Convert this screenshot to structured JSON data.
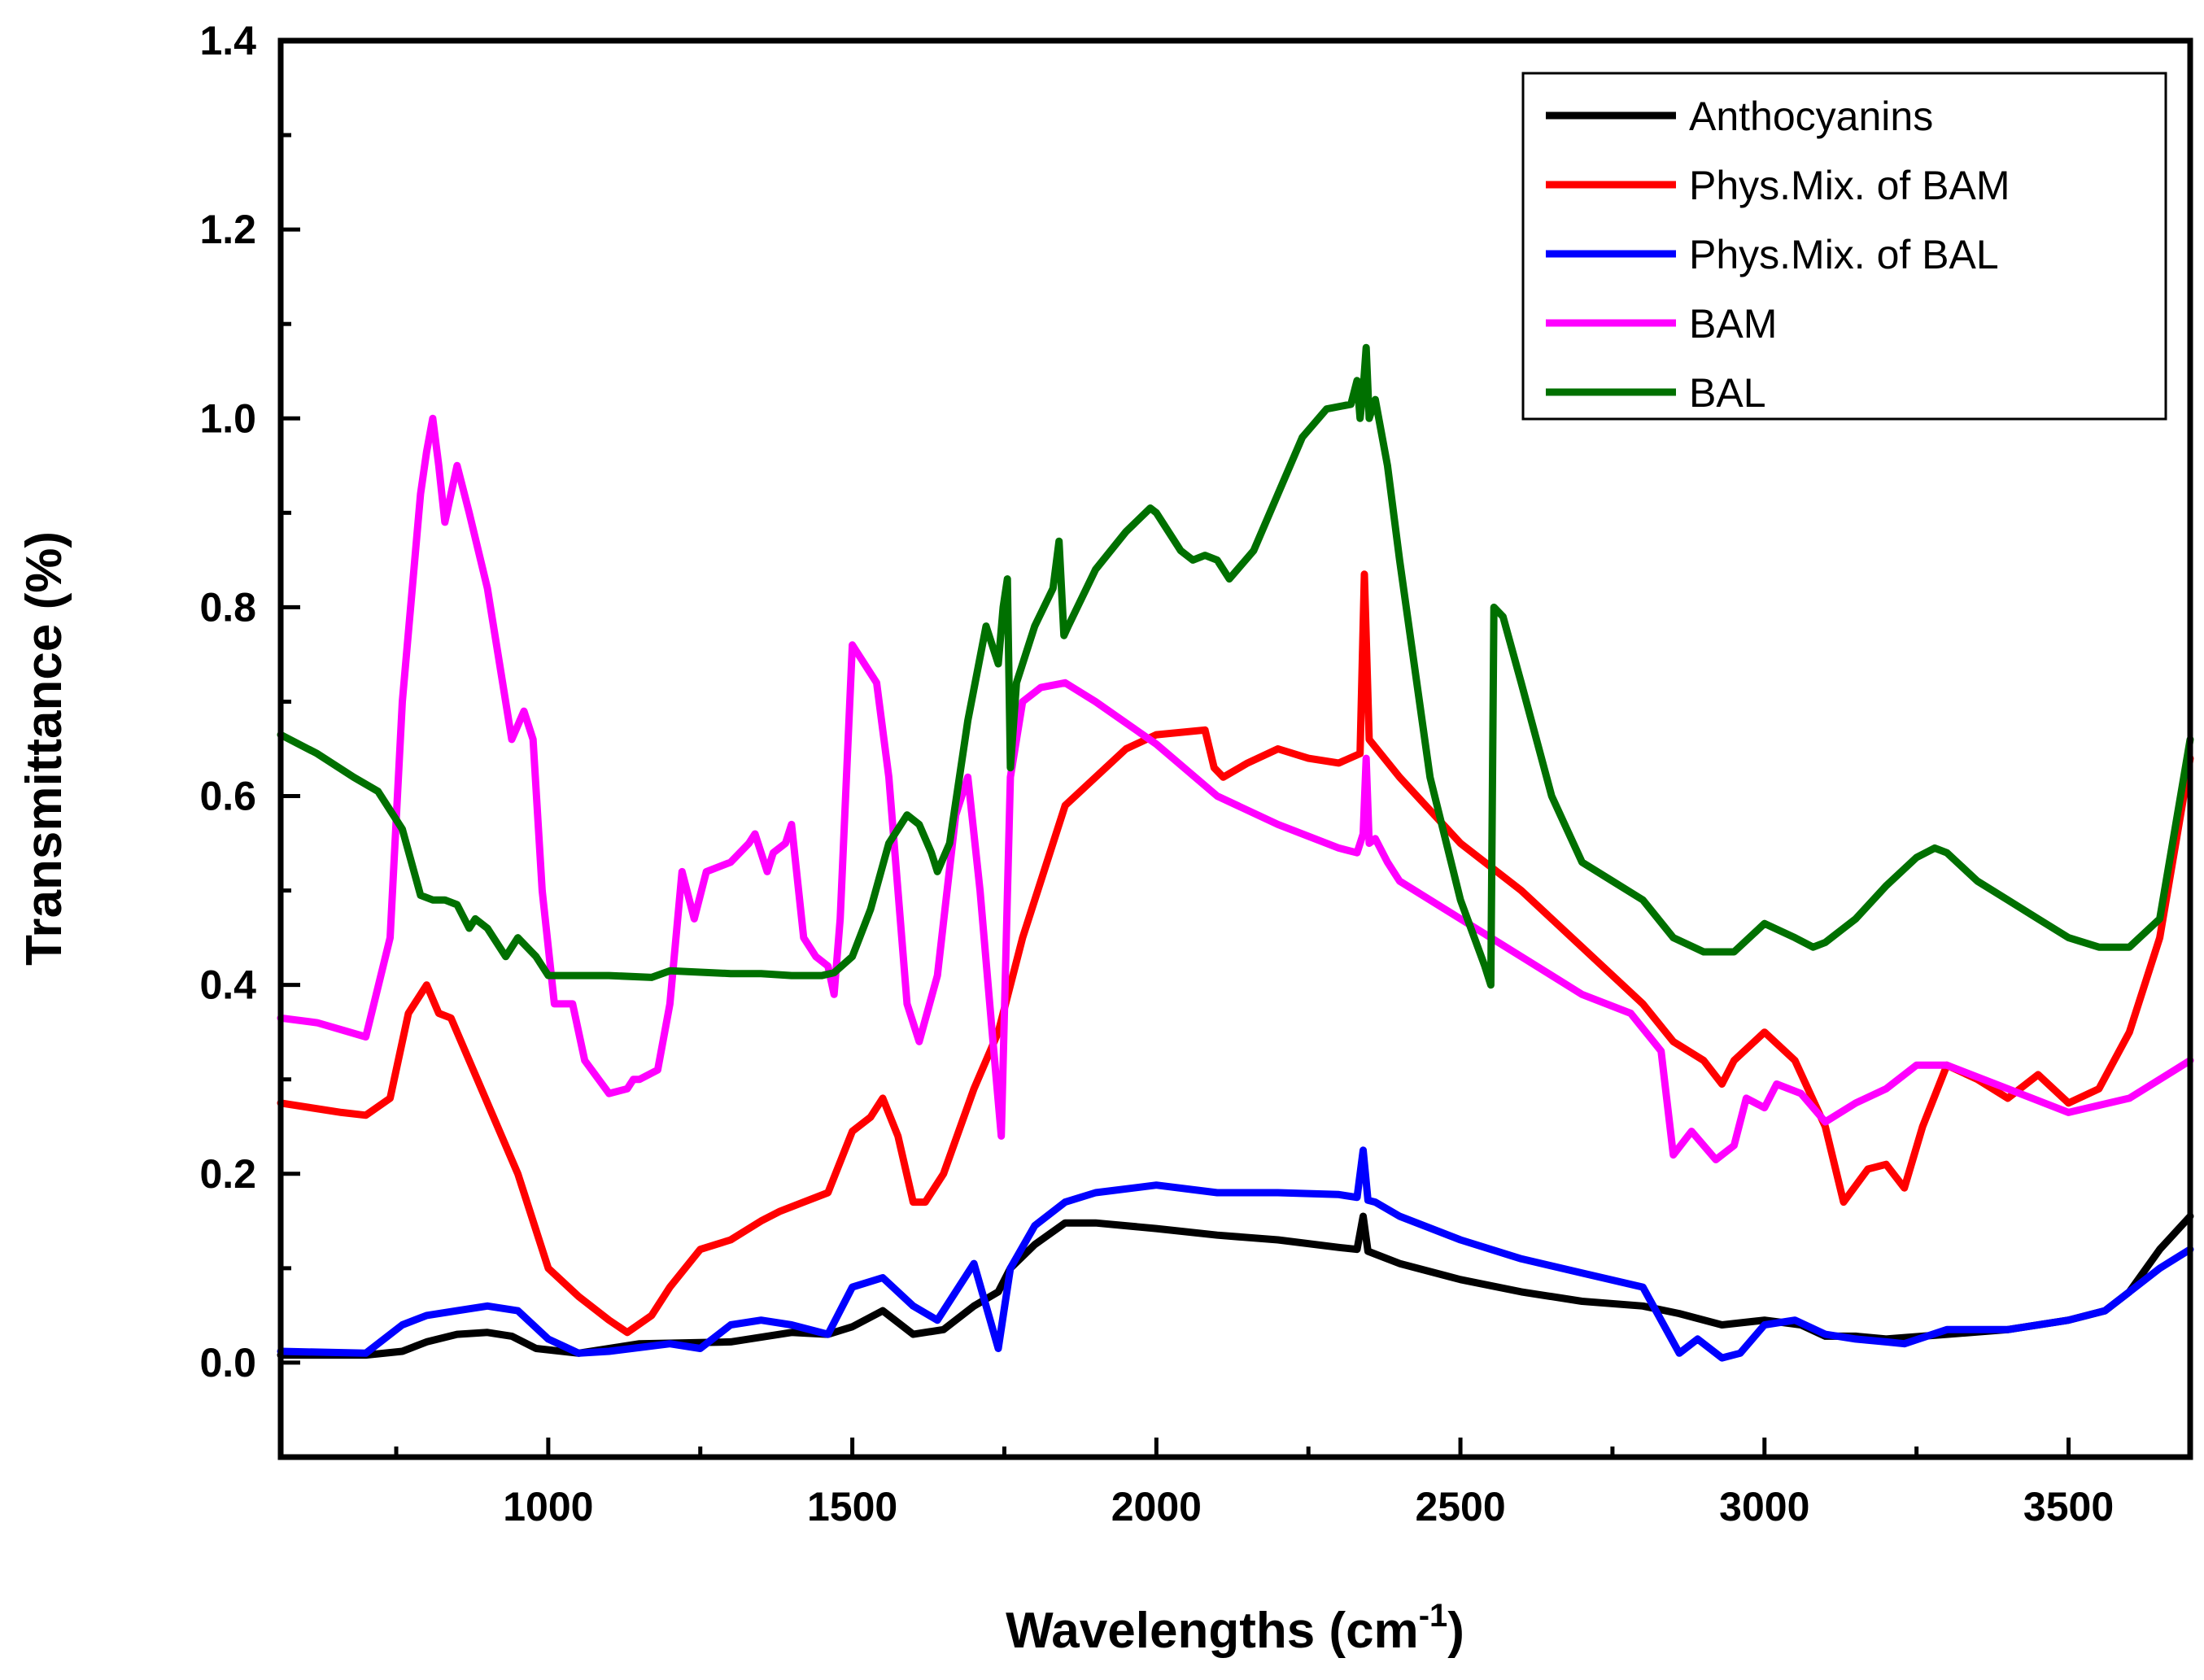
{
  "chart_data": {
    "type": "line",
    "title": "",
    "xlabel": "Wavelengths (cm",
    "xlabel_sup": "-1",
    "xlabel_end": ")",
    "ylabel": "Transmittance (%)",
    "xlim": [
      560,
      3700
    ],
    "ylim": [
      -0.1,
      1.4
    ],
    "xticks": [
      1000,
      1500,
      2000,
      2500,
      3000,
      3500
    ],
    "xtick_labels": [
      "1000",
      "1500",
      "2000",
      "2500",
      "3000",
      "3500"
    ],
    "xminor_ticks": [
      750,
      1250,
      1750,
      2250,
      2750,
      3250
    ],
    "yticks": [
      0.0,
      0.2,
      0.4,
      0.6,
      0.8,
      1.0,
      1.2,
      1.4
    ],
    "ytick_labels": [
      "0.0",
      "0.2",
      "0.4",
      "0.6",
      "0.8",
      "1.0",
      "1.2",
      "1.4"
    ],
    "yminor_ticks": [
      -0.1,
      0.1,
      0.3,
      0.5,
      0.7,
      0.9,
      1.1,
      1.3
    ],
    "legend_position": "top-right",
    "series": [
      {
        "name": "Anthocyanins",
        "color": "#000000",
        "x": [
          560,
          700,
          760,
          800,
          850,
          900,
          940,
          980,
          1050,
          1150,
          1300,
          1400,
          1460,
          1500,
          1550,
          1600,
          1650,
          1700,
          1740,
          1760,
          1800,
          1850,
          1900,
          2000,
          2100,
          2200,
          2300,
          2330,
          2340,
          2348,
          2360,
          2400,
          2500,
          2600,
          2700,
          2800,
          2860,
          2930,
          3000,
          3060,
          3100,
          3150,
          3200,
          3300,
          3400,
          3500,
          3560,
          3600,
          3650,
          3700
        ],
        "y": [
          0.008,
          0.008,
          0.012,
          0.022,
          0.03,
          0.032,
          0.028,
          0.015,
          0.01,
          0.02,
          0.022,
          0.032,
          0.03,
          0.038,
          0.055,
          0.03,
          0.035,
          0.06,
          0.075,
          0.1,
          0.125,
          0.148,
          0.148,
          0.142,
          0.135,
          0.13,
          0.122,
          0.12,
          0.155,
          0.118,
          0.115,
          0.105,
          0.088,
          0.075,
          0.065,
          0.06,
          0.052,
          0.04,
          0.045,
          0.04,
          0.028,
          0.028,
          0.025,
          0.03,
          0.035,
          0.045,
          0.055,
          0.075,
          0.12,
          0.155
        ]
      },
      {
        "name": "Phys.Mix. of BAM",
        "color": "#ff0000",
        "x": [
          560,
          660,
          700,
          740,
          770,
          800,
          820,
          840,
          870,
          910,
          950,
          1000,
          1050,
          1100,
          1130,
          1170,
          1200,
          1250,
          1300,
          1350,
          1380,
          1420,
          1460,
          1500,
          1530,
          1550,
          1575,
          1600,
          1620,
          1650,
          1700,
          1740,
          1780,
          1850,
          1950,
          2000,
          2080,
          2095,
          2110,
          2150,
          2200,
          2250,
          2300,
          2335,
          2342,
          2350,
          2400,
          2500,
          2600,
          2700,
          2800,
          2850,
          2900,
          2930,
          2950,
          3000,
          3050,
          3100,
          3130,
          3170,
          3200,
          3230,
          3260,
          3300,
          3350,
          3400,
          3450,
          3500,
          3550,
          3600,
          3650,
          3700
        ],
        "y": [
          0.275,
          0.265,
          0.262,
          0.28,
          0.37,
          0.4,
          0.37,
          0.365,
          0.32,
          0.26,
          0.2,
          0.1,
          0.07,
          0.045,
          0.032,
          0.05,
          0.08,
          0.12,
          0.13,
          0.15,
          0.16,
          0.17,
          0.18,
          0.245,
          0.26,
          0.28,
          0.24,
          0.17,
          0.17,
          0.2,
          0.29,
          0.35,
          0.45,
          0.59,
          0.65,
          0.665,
          0.67,
          0.63,
          0.62,
          0.635,
          0.65,
          0.64,
          0.635,
          0.645,
          0.835,
          0.66,
          0.62,
          0.55,
          0.5,
          0.44,
          0.38,
          0.34,
          0.32,
          0.295,
          0.32,
          0.35,
          0.32,
          0.25,
          0.17,
          0.205,
          0.21,
          0.185,
          0.25,
          0.315,
          0.3,
          0.28,
          0.305,
          0.275,
          0.29,
          0.35,
          0.45,
          0.64
        ]
      },
      {
        "name": "Phys.Mix. of BAL",
        "color": "#0000ff",
        "x": [
          560,
          700,
          760,
          800,
          850,
          900,
          950,
          1000,
          1050,
          1100,
          1200,
          1250,
          1300,
          1350,
          1400,
          1460,
          1500,
          1550,
          1600,
          1640,
          1700,
          1740,
          1760,
          1800,
          1850,
          1900,
          2000,
          2100,
          2200,
          2300,
          2330,
          2340,
          2348,
          2360,
          2400,
          2500,
          2600,
          2700,
          2800,
          2860,
          2890,
          2930,
          2960,
          3000,
          3050,
          3100,
          3150,
          3200,
          3230,
          3300,
          3400,
          3500,
          3560,
          3600,
          3650,
          3700
        ],
        "y": [
          0.012,
          0.01,
          0.04,
          0.05,
          0.055,
          0.06,
          0.055,
          0.025,
          0.01,
          0.012,
          0.02,
          0.015,
          0.04,
          0.045,
          0.04,
          0.03,
          0.08,
          0.09,
          0.06,
          0.045,
          0.105,
          0.015,
          0.1,
          0.145,
          0.17,
          0.18,
          0.188,
          0.18,
          0.18,
          0.178,
          0.175,
          0.225,
          0.172,
          0.17,
          0.155,
          0.13,
          0.11,
          0.095,
          0.08,
          0.01,
          0.025,
          0.005,
          0.01,
          0.04,
          0.045,
          0.03,
          0.025,
          0.022,
          0.02,
          0.035,
          0.035,
          0.045,
          0.055,
          0.075,
          0.1,
          0.12
        ]
      },
      {
        "name": "BAM",
        "color": "#ff00ff",
        "x": [
          560,
          620,
          700,
          740,
          760,
          790,
          800,
          810,
          820,
          830,
          850,
          870,
          900,
          940,
          960,
          975,
          990,
          1010,
          1040,
          1060,
          1100,
          1130,
          1140,
          1150,
          1180,
          1200,
          1220,
          1240,
          1260,
          1300,
          1330,
          1340,
          1360,
          1370,
          1390,
          1400,
          1420,
          1440,
          1460,
          1470,
          1480,
          1500,
          1540,
          1560,
          1590,
          1610,
          1640,
          1670,
          1690,
          1710,
          1730,
          1745,
          1760,
          1780,
          1810,
          1850,
          1900,
          2000,
          2100,
          2200,
          2300,
          2330,
          2340,
          2345,
          2350,
          2360,
          2380,
          2400,
          2500,
          2600,
          2700,
          2780,
          2830,
          2850,
          2880,
          2920,
          2950,
          2970,
          3000,
          3020,
          3060,
          3100,
          3150,
          3200,
          3250,
          3300,
          3400,
          3500,
          3600,
          3700
        ],
        "y": [
          0.365,
          0.36,
          0.345,
          0.45,
          0.7,
          0.92,
          0.965,
          1.0,
          0.95,
          0.89,
          0.95,
          0.9,
          0.82,
          0.66,
          0.69,
          0.66,
          0.5,
          0.38,
          0.38,
          0.32,
          0.285,
          0.29,
          0.3,
          0.3,
          0.31,
          0.38,
          0.52,
          0.47,
          0.52,
          0.53,
          0.55,
          0.56,
          0.52,
          0.54,
          0.55,
          0.57,
          0.45,
          0.43,
          0.42,
          0.39,
          0.47,
          0.76,
          0.72,
          0.62,
          0.38,
          0.34,
          0.41,
          0.58,
          0.62,
          0.5,
          0.35,
          0.24,
          0.62,
          0.7,
          0.715,
          0.72,
          0.7,
          0.655,
          0.6,
          0.57,
          0.545,
          0.54,
          0.56,
          0.64,
          0.55,
          0.555,
          0.53,
          0.51,
          0.47,
          0.43,
          0.39,
          0.37,
          0.33,
          0.22,
          0.245,
          0.215,
          0.23,
          0.28,
          0.27,
          0.295,
          0.285,
          0.255,
          0.275,
          0.29,
          0.315,
          0.315,
          0.29,
          0.265,
          0.28,
          0.32
        ]
      },
      {
        "name": "BAL",
        "color": "#007000",
        "x": [
          560,
          620,
          680,
          720,
          760,
          790,
          810,
          830,
          850,
          870,
          880,
          900,
          930,
          950,
          980,
          1000,
          1100,
          1170,
          1200,
          1300,
          1350,
          1400,
          1450,
          1470,
          1500,
          1530,
          1560,
          1590,
          1610,
          1630,
          1640,
          1660,
          1690,
          1720,
          1740,
          1748,
          1755,
          1760,
          1770,
          1800,
          1830,
          1840,
          1848,
          1855,
          1900,
          1950,
          1990,
          2000,
          2040,
          2060,
          2080,
          2100,
          2120,
          2160,
          2200,
          2240,
          2280,
          2320,
          2330,
          2335,
          2340,
          2345,
          2350,
          2360,
          2380,
          2400,
          2450,
          2500,
          2540,
          2550,
          2555,
          2570,
          2600,
          2650,
          2700,
          2750,
          2800,
          2850,
          2900,
          2950,
          3000,
          3050,
          3080,
          3100,
          3150,
          3200,
          3250,
          3280,
          3300,
          3350,
          3400,
          3450,
          3500,
          3550,
          3600,
          3650,
          3700
        ],
        "y": [
          0.665,
          0.645,
          0.62,
          0.605,
          0.565,
          0.495,
          0.49,
          0.49,
          0.485,
          0.46,
          0.47,
          0.46,
          0.43,
          0.45,
          0.43,
          0.41,
          0.41,
          0.408,
          0.415,
          0.412,
          0.412,
          0.41,
          0.41,
          0.413,
          0.43,
          0.48,
          0.55,
          0.58,
          0.57,
          0.54,
          0.52,
          0.55,
          0.68,
          0.78,
          0.74,
          0.8,
          0.83,
          0.63,
          0.72,
          0.78,
          0.82,
          0.87,
          0.77,
          0.78,
          0.84,
          0.88,
          0.905,
          0.9,
          0.86,
          0.85,
          0.855,
          0.85,
          0.83,
          0.86,
          0.92,
          0.98,
          1.01,
          1.015,
          1.04,
          1.0,
          1.03,
          1.075,
          1.0,
          1.02,
          0.95,
          0.85,
          0.62,
          0.49,
          0.42,
          0.4,
          0.8,
          0.79,
          0.72,
          0.6,
          0.53,
          0.51,
          0.49,
          0.45,
          0.435,
          0.435,
          0.465,
          0.45,
          0.44,
          0.445,
          0.47,
          0.505,
          0.535,
          0.545,
          0.54,
          0.51,
          0.49,
          0.47,
          0.45,
          0.44,
          0.44,
          0.47,
          0.66
        ]
      }
    ]
  }
}
